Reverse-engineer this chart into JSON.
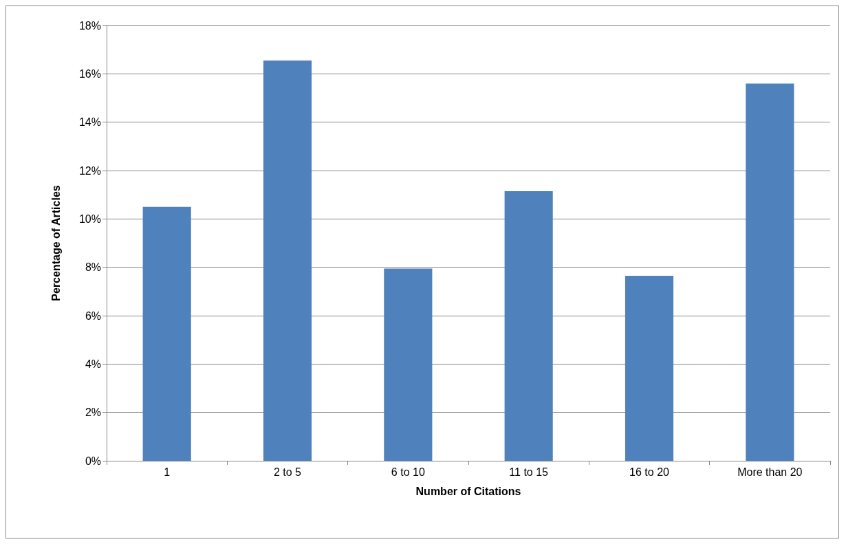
{
  "chart_data": {
    "type": "bar",
    "xlabel": "Number of Citations",
    "ylabel": "Percentage of Articles",
    "categories": [
      "1",
      "2 to 5",
      "6 to 10",
      "11 to 15",
      "16 to 20",
      "More than 20"
    ],
    "values": [
      10.5,
      16.55,
      7.95,
      11.15,
      7.65,
      15.6
    ],
    "color": "#4f81bd",
    "ylim": [
      0,
      18
    ],
    "yticks": [
      {
        "value": 0,
        "label": "0%"
      },
      {
        "value": 2,
        "label": "2%"
      },
      {
        "value": 4,
        "label": "4%"
      },
      {
        "value": 6,
        "label": "6%"
      },
      {
        "value": 8,
        "label": "8%"
      },
      {
        "value": 10,
        "label": "10%"
      },
      {
        "value": 12,
        "label": "12%"
      },
      {
        "value": 14,
        "label": "14%"
      },
      {
        "value": 16,
        "label": "16%"
      },
      {
        "value": 18,
        "label": "18%"
      }
    ],
    "grid": "y"
  }
}
